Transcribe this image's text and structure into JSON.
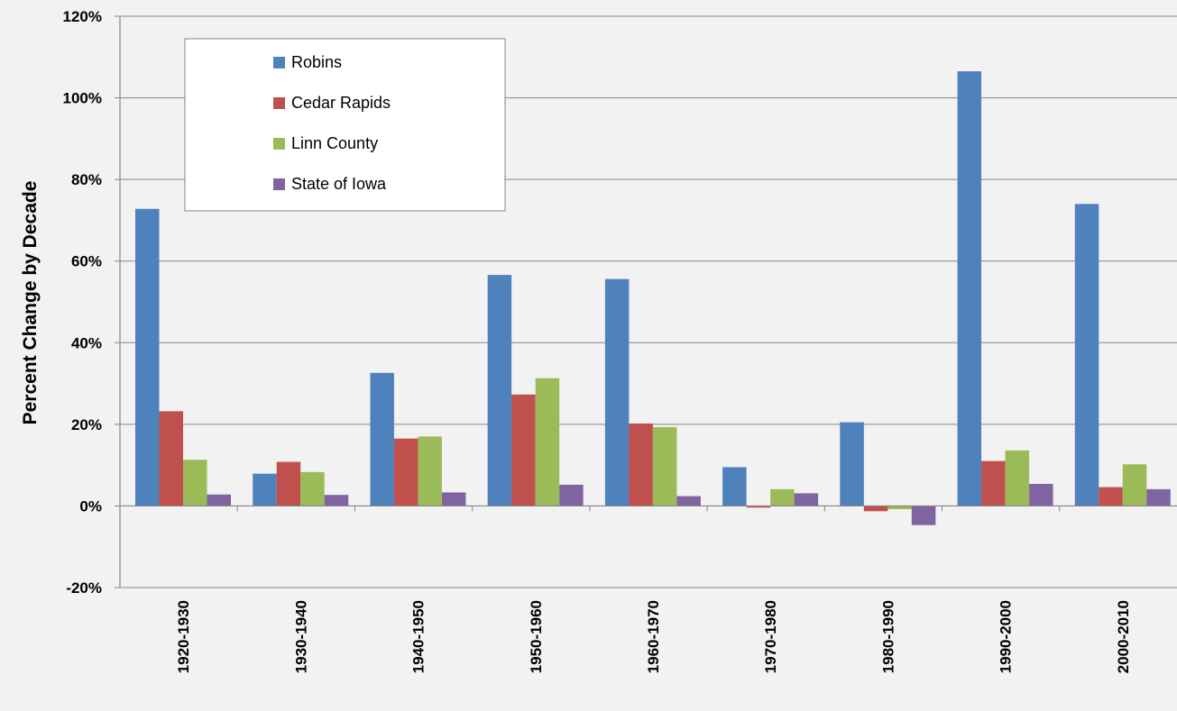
{
  "chart_data": {
    "type": "bar",
    "title": "",
    "xlabel": "",
    "ylabel": "Percent Change by Decade",
    "ylim": [
      -20,
      120
    ],
    "yticks": [
      "-20%",
      "0%",
      "20%",
      "40%",
      "60%",
      "80%",
      "100%",
      "120%"
    ],
    "grid": true,
    "legend_position": "top-left",
    "categories": [
      "1920-1930",
      "1930-1940",
      "1940-1950",
      "1950-1960",
      "1960-1970",
      "1970-1980",
      "1980-1990",
      "1990-2000",
      "2000-2010"
    ],
    "series": [
      {
        "name": "Robins",
        "color": "#4f81bd",
        "values": [
          72.8,
          7.9,
          32.6,
          56.6,
          55.6,
          9.5,
          20.5,
          106.5,
          74.0
        ]
      },
      {
        "name": "Cedar Rapids",
        "color": "#c0504d",
        "values": [
          23.2,
          10.8,
          16.5,
          27.3,
          20.2,
          -0.4,
          -1.3,
          11.0,
          4.6
        ]
      },
      {
        "name": "Linn County",
        "color": "#9bbb59",
        "values": [
          11.3,
          8.3,
          17.0,
          31.3,
          19.3,
          4.1,
          -0.8,
          13.6,
          10.2
        ]
      },
      {
        "name": "State of Iowa",
        "color": "#8064a2",
        "values": [
          2.8,
          2.7,
          3.3,
          5.2,
          2.4,
          3.1,
          -4.7,
          5.4,
          4.1
        ]
      }
    ]
  }
}
